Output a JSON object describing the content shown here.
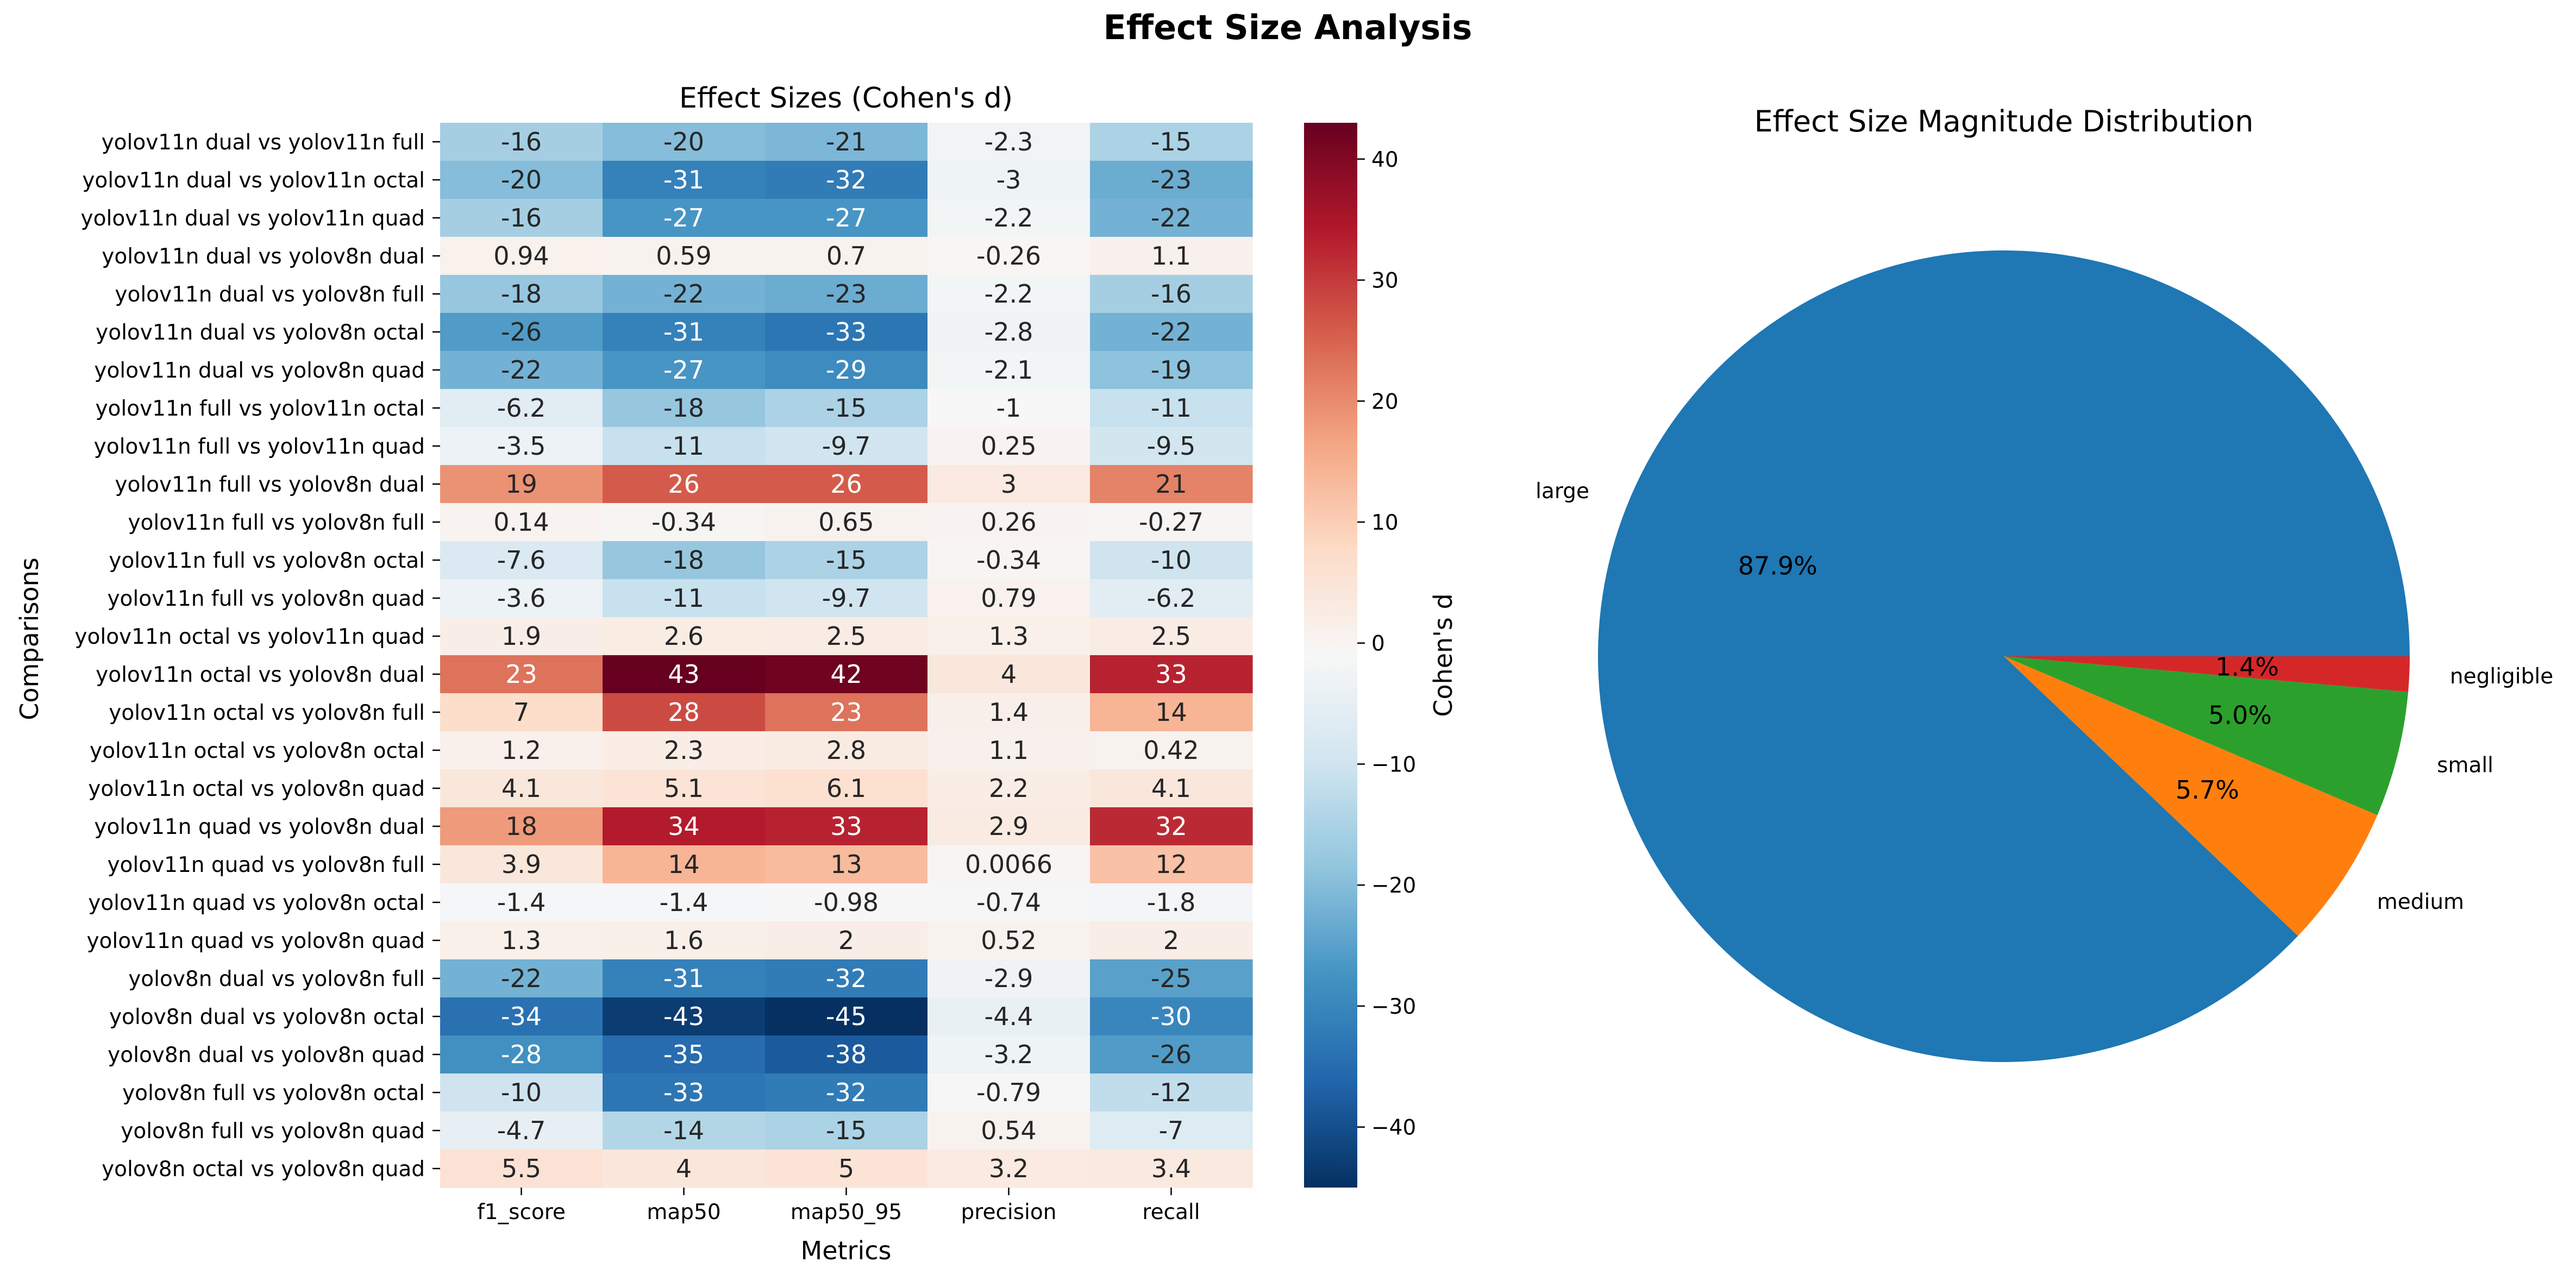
{
  "figure": {
    "title": "Effect Size Analysis"
  },
  "chart_data": [
    {
      "type": "heatmap",
      "title": "Effect Sizes (Cohen's d)",
      "xlabel": "Metrics",
      "ylabel": "Comparisons",
      "colorbar_label": "Cohen's d",
      "colormap": "RdBu_r",
      "vlim": [
        -45,
        43
      ],
      "colorbar_ticks": [
        -40,
        -30,
        -20,
        -10,
        0,
        10,
        20,
        30,
        40
      ],
      "columns": [
        "f1_score",
        "map50",
        "map50_95",
        "precision",
        "recall"
      ],
      "rows": [
        "yolov11n dual vs yolov11n full",
        "yolov11n dual vs yolov11n octal",
        "yolov11n dual vs yolov11n quad",
        "yolov11n dual vs yolov8n dual",
        "yolov11n dual vs yolov8n full",
        "yolov11n dual vs yolov8n octal",
        "yolov11n dual vs yolov8n quad",
        "yolov11n full vs yolov11n octal",
        "yolov11n full vs yolov11n quad",
        "yolov11n full vs yolov8n dual",
        "yolov11n full vs yolov8n full",
        "yolov11n full vs yolov8n octal",
        "yolov11n full vs yolov8n quad",
        "yolov11n octal vs yolov11n quad",
        "yolov11n octal vs yolov8n dual",
        "yolov11n octal vs yolov8n full",
        "yolov11n octal vs yolov8n octal",
        "yolov11n octal vs yolov8n quad",
        "yolov11n quad vs yolov8n dual",
        "yolov11n quad vs yolov8n full",
        "yolov11n quad vs yolov8n octal",
        "yolov11n quad vs yolov8n quad",
        "yolov8n dual vs yolov8n full",
        "yolov8n dual vs yolov8n octal",
        "yolov8n dual vs yolov8n quad",
        "yolov8n full vs yolov8n octal",
        "yolov8n full vs yolov8n quad",
        "yolov8n octal vs yolov8n quad"
      ],
      "values": [
        [
          -16,
          -20,
          -21,
          -2.3,
          -15
        ],
        [
          -20,
          -31,
          -32,
          -3,
          -23
        ],
        [
          -16,
          -27,
          -27,
          -2.2,
          -22
        ],
        [
          0.94,
          0.59,
          0.7,
          -0.26,
          1.1
        ],
        [
          -18,
          -22,
          -23,
          -2.2,
          -16
        ],
        [
          -26,
          -31,
          -33,
          -2.8,
          -22
        ],
        [
          -22,
          -27,
          -29,
          -2.1,
          -19
        ],
        [
          -6.2,
          -18,
          -15,
          -1,
          -11
        ],
        [
          -3.5,
          -11,
          -9.7,
          0.25,
          -9.5
        ],
        [
          19,
          26,
          26,
          3,
          21
        ],
        [
          0.14,
          -0.34,
          0.65,
          0.26,
          -0.27
        ],
        [
          -7.6,
          -18,
          -15,
          -0.34,
          -10
        ],
        [
          -3.6,
          -11,
          -9.7,
          0.79,
          -6.2
        ],
        [
          1.9,
          2.6,
          2.5,
          1.3,
          2.5
        ],
        [
          23,
          43,
          42,
          4,
          33
        ],
        [
          7,
          28,
          23,
          1.4,
          14
        ],
        [
          1.2,
          2.3,
          2.8,
          1.1,
          0.42
        ],
        [
          4.1,
          5.1,
          6.1,
          2.2,
          4.1
        ],
        [
          18,
          34,
          33,
          2.9,
          32
        ],
        [
          3.9,
          14,
          13,
          0.0066,
          12
        ],
        [
          -1.4,
          -1.4,
          -0.98,
          -0.74,
          -1.8
        ],
        [
          1.3,
          1.6,
          2,
          0.52,
          2
        ],
        [
          -22,
          -31,
          -32,
          -2.9,
          -25
        ],
        [
          -34,
          -43,
          -45,
          -4.4,
          -30
        ],
        [
          -28,
          -35,
          -38,
          -3.2,
          -26
        ],
        [
          -10,
          -33,
          -32,
          -0.79,
          -12
        ],
        [
          -4.7,
          -14,
          -15,
          0.54,
          -7
        ],
        [
          5.5,
          4,
          5,
          3.2,
          3.4
        ]
      ]
    },
    {
      "type": "pie",
      "title": "Effect Size Magnitude Distribution",
      "labels": [
        "large",
        "medium",
        "small",
        "negligible"
      ],
      "values": [
        87.9,
        5.7,
        5.0,
        1.4
      ],
      "pct_labels": [
        "87.9%",
        "5.7%",
        "5.0%",
        "1.4%"
      ],
      "colors": [
        "#1f77b4",
        "#ff7f0e",
        "#2ca02c",
        "#d62728"
      ]
    }
  ]
}
